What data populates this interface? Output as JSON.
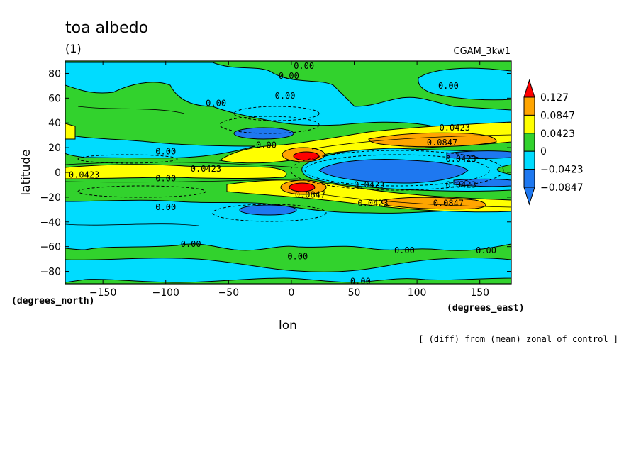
{
  "chart_data": {
    "type": "contour",
    "title": "toa albedo",
    "subtitle": "(1)",
    "experiment": "CGAM_3kw1",
    "xlabel": "lon",
    "ylabel": "latitude",
    "x_units": "(degrees_east)",
    "y_units": "(degrees_north)",
    "footnote": "[ (diff) from (mean) zonal of control ]",
    "xlim": [
      -180,
      175
    ],
    "ylim": [
      -90,
      90
    ],
    "x_ticks": [
      -150,
      -100,
      -50,
      0,
      50,
      100,
      150
    ],
    "x_tick_labels": [
      "−150",
      "−100",
      "−50",
      "0",
      "50",
      "100",
      "150"
    ],
    "y_ticks": [
      -80,
      -60,
      -40,
      -20,
      0,
      20,
      40,
      60,
      80
    ],
    "y_tick_labels": [
      "−80",
      "−60",
      "−40",
      "−20",
      "0",
      "20",
      "40",
      "60",
      "80"
    ],
    "grid": false,
    "colorbar": {
      "position": "right",
      "levels": [
        -0.0847,
        -0.0423,
        0,
        0.0423,
        0.0847,
        0.127
      ],
      "level_labels": [
        "−0.0847",
        "−0.0423",
        "0",
        "0.0423",
        "0.0847",
        "0.127"
      ],
      "colors": [
        "#1e78f0",
        "#00dcff",
        "#32d22d",
        "#ffff00",
        "#ffa500",
        "#ff0000"
      ]
    },
    "contour_labels": [
      {
        "text": "0.00",
        "lon": 10,
        "lat": 86
      },
      {
        "text": "0.00",
        "lon": -2,
        "lat": 78
      },
      {
        "text": "0.00",
        "lon": -5,
        "lat": 62
      },
      {
        "text": "0.00",
        "lon": -60,
        "lat": 56
      },
      {
        "text": "0.00",
        "lon": 125,
        "lat": 70
      },
      {
        "text": "0.0423",
        "lon": 130,
        "lat": 36
      },
      {
        "text": "0.00",
        "lon": -100,
        "lat": 17
      },
      {
        "text": "0.00",
        "lon": -20,
        "lat": 22
      },
      {
        "text": "0.0847",
        "lon": 120,
        "lat": 24
      },
      {
        "text": "0.0423",
        "lon": 135,
        "lat": 11
      },
      {
        "text": "0.0423",
        "lon": -68,
        "lat": 3
      },
      {
        "text": "0.0423",
        "lon": -165,
        "lat": -2
      },
      {
        "text": "0.00",
        "lon": -100,
        "lat": -5
      },
      {
        "text": "0.0423",
        "lon": 62,
        "lat": -10
      },
      {
        "text": "0.0423",
        "lon": 135,
        "lat": -10
      },
      {
        "text": "0.0847",
        "lon": 15,
        "lat": -18
      },
      {
        "text": "0.0423",
        "lon": 65,
        "lat": -25
      },
      {
        "text": "0.0847",
        "lon": 125,
        "lat": -25
      },
      {
        "text": "0.00",
        "lon": -100,
        "lat": -28
      },
      {
        "text": "0.00",
        "lon": -80,
        "lat": -58
      },
      {
        "text": "0.00",
        "lon": 5,
        "lat": -68
      },
      {
        "text": "0.00",
        "lon": 90,
        "lat": -63
      },
      {
        "text": "0.00",
        "lon": 155,
        "lat": -63
      },
      {
        "text": "0.00",
        "lon": 55,
        "lat": -88
      }
    ]
  }
}
